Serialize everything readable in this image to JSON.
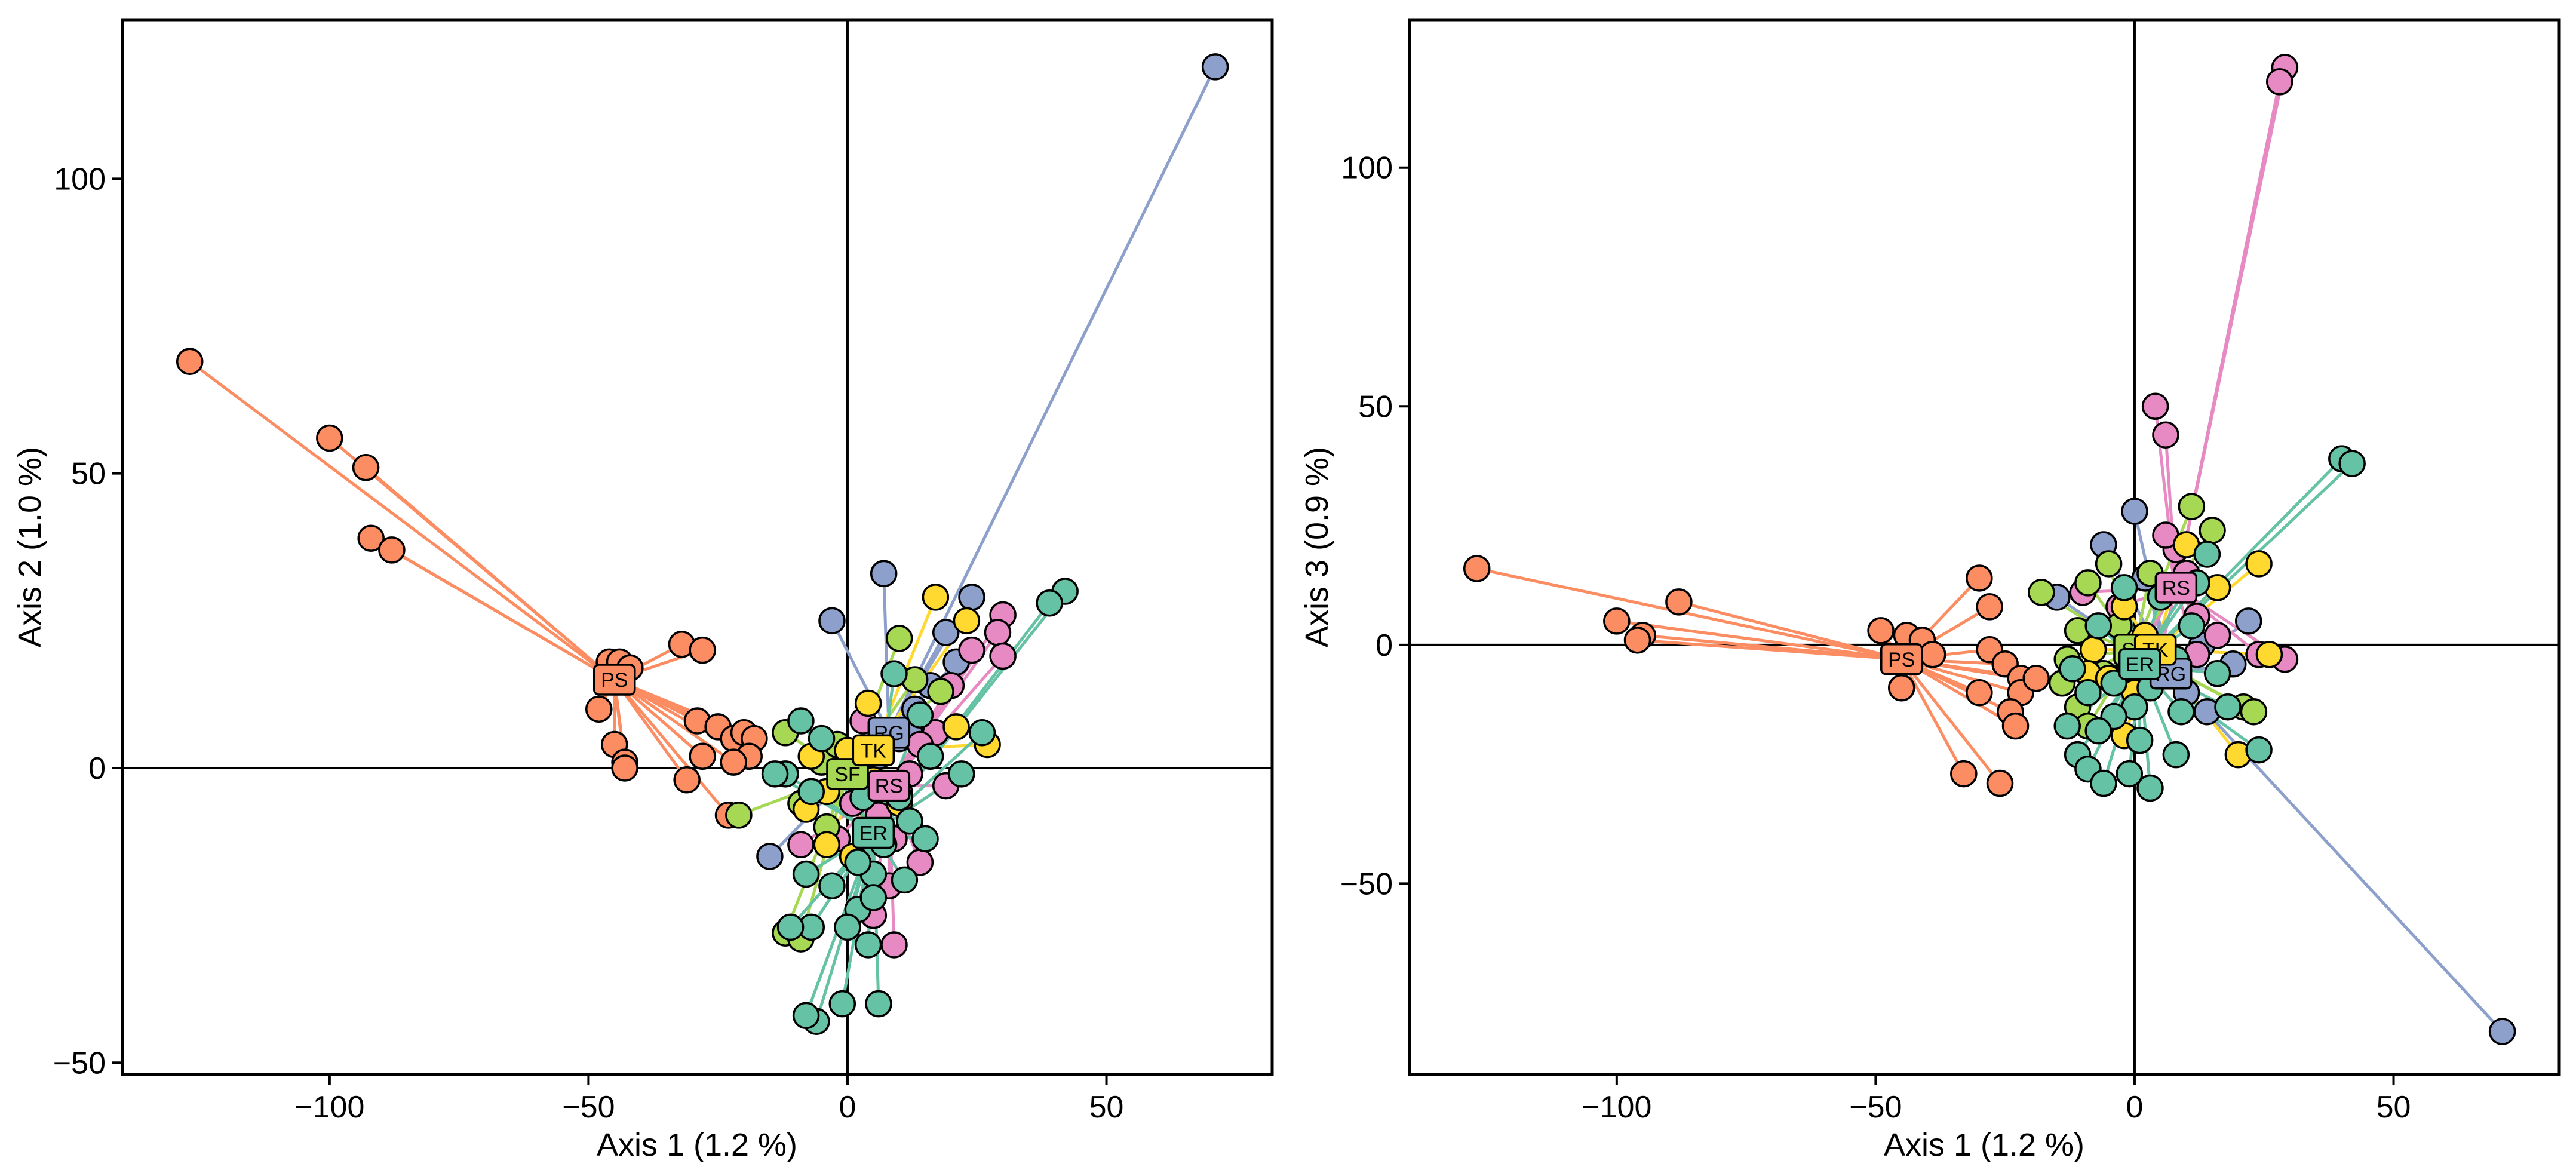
{
  "colors": {
    "ER": "#66C2A5",
    "PS": "#FC8D62",
    "RG": "#8DA0CB",
    "RS": "#E78AC3",
    "SF": "#A6D854",
    "TK": "#FFD92F"
  },
  "chart_data": [
    {
      "type": "scatter",
      "title": "",
      "xlabel": "Axis 1 (1.2 %)",
      "ylabel": "Axis 2 (1.0 %)",
      "xlim": [
        -140,
        82
      ],
      "ylim": [
        -52,
        127
      ],
      "xticks": [
        -100,
        -50,
        0,
        50
      ],
      "yticks": [
        -50,
        0,
        50,
        100
      ],
      "xtick_labels": [
        "−100",
        "−50",
        "0",
        "50"
      ],
      "ytick_labels": [
        "−50",
        "0",
        "50",
        "100"
      ],
      "reference_lines": {
        "x": 0,
        "y": 0
      },
      "legend": "none",
      "groups": [
        {
          "name": "PS",
          "centroid": [
            -45,
            15
          ],
          "label": "PS",
          "points": [
            [
              -127,
              69
            ],
            [
              -100,
              56
            ],
            [
              -93,
              51
            ],
            [
              -92,
              39
            ],
            [
              -88,
              37
            ],
            [
              -46,
              18
            ],
            [
              -44,
              18
            ],
            [
              -42,
              17
            ],
            [
              -48,
              10
            ],
            [
              -45,
              4
            ],
            [
              -43,
              1
            ],
            [
              -43,
              0
            ],
            [
              -32,
              21
            ],
            [
              -28,
              20
            ],
            [
              -29,
              8
            ],
            [
              -28,
              2
            ],
            [
              -31,
              -2
            ],
            [
              -25,
              7
            ],
            [
              -22,
              5
            ],
            [
              -20,
              6
            ],
            [
              -18,
              5
            ],
            [
              -19,
              2
            ],
            [
              -22,
              1
            ],
            [
              -23,
              -8
            ]
          ]
        },
        {
          "name": "RG",
          "centroid": [
            8,
            6
          ],
          "label": "RG",
          "points": [
            [
              71,
              119
            ],
            [
              7,
              33
            ],
            [
              -3,
              25
            ],
            [
              19,
              23
            ],
            [
              21,
              18
            ],
            [
              24,
              29
            ],
            [
              13,
              10
            ],
            [
              10,
              5
            ],
            [
              6,
              2
            ],
            [
              -15,
              -15
            ],
            [
              16,
              14
            ],
            [
              12,
              6
            ]
          ]
        },
        {
          "name": "RS",
          "centroid": [
            8,
            -3
          ],
          "label": "RS",
          "points": [
            [
              30,
              26
            ],
            [
              29,
              23
            ],
            [
              30,
              19
            ],
            [
              24,
              20
            ],
            [
              20,
              14
            ],
            [
              17,
              6
            ],
            [
              14,
              4
            ],
            [
              12,
              -1
            ],
            [
              10,
              -4
            ],
            [
              6,
              -8
            ],
            [
              9,
              -12
            ],
            [
              14,
              -16
            ],
            [
              8,
              -20
            ],
            [
              5,
              -25
            ],
            [
              9,
              -30
            ],
            [
              19,
              -3
            ],
            [
              0,
              2
            ],
            [
              3,
              8
            ],
            [
              1,
              -6
            ],
            [
              -2,
              -12
            ],
            [
              -9,
              -13
            ]
          ]
        },
        {
          "name": "SF",
          "centroid": [
            0,
            -1
          ],
          "label": "SF",
          "points": [
            [
              -21,
              -8
            ],
            [
              -12,
              6
            ],
            [
              -9,
              -6
            ],
            [
              -5,
              1
            ],
            [
              10,
              22
            ],
            [
              13,
              15
            ],
            [
              18,
              13
            ],
            [
              -12,
              -28
            ],
            [
              -9,
              -29
            ],
            [
              4,
              -2
            ],
            [
              -4,
              -10
            ],
            [
              -2,
              4
            ]
          ]
        },
        {
          "name": "TK",
          "centroid": [
            5,
            3
          ],
          "label": "TK",
          "points": [
            [
              17,
              29
            ],
            [
              23,
              25
            ],
            [
              27,
              4
            ],
            [
              21,
              7
            ],
            [
              4,
              11
            ],
            [
              0,
              3
            ],
            [
              -4,
              -4
            ],
            [
              -8,
              -7
            ],
            [
              -4,
              -13
            ],
            [
              1,
              -15
            ],
            [
              5,
              -2
            ],
            [
              10,
              -6
            ],
            [
              -7,
              2
            ]
          ]
        },
        {
          "name": "ER",
          "centroid": [
            5,
            -11
          ],
          "label": "ER",
          "points": [
            [
              42,
              30
            ],
            [
              39,
              28
            ],
            [
              26,
              6
            ],
            [
              22,
              -1
            ],
            [
              14,
              9
            ],
            [
              16,
              2
            ],
            [
              10,
              -5
            ],
            [
              5,
              -18
            ],
            [
              2,
              -24
            ],
            [
              0,
              -27
            ],
            [
              4,
              -30
            ],
            [
              -1,
              -40
            ],
            [
              6,
              -40
            ],
            [
              -6,
              -43
            ],
            [
              -8,
              -42
            ],
            [
              -7,
              -27
            ],
            [
              -11,
              -27
            ],
            [
              -8,
              -18
            ],
            [
              -3,
              -20
            ],
            [
              2,
              -16
            ],
            [
              7,
              -13
            ],
            [
              12,
              -9
            ],
            [
              15,
              -12
            ],
            [
              -12,
              -1
            ],
            [
              -5,
              5
            ],
            [
              -9,
              8
            ],
            [
              -14,
              -1
            ],
            [
              9,
              16
            ],
            [
              5,
              -22
            ],
            [
              11,
              -19
            ],
            [
              -7,
              -4
            ],
            [
              3,
              -5
            ]
          ]
        }
      ]
    },
    {
      "type": "scatter",
      "title": "",
      "xlabel": "Axis 1 (1.2 %)",
      "ylabel": "Axis 3 (0.9 %)",
      "xlim": [
        -140,
        82
      ],
      "ylim": [
        -90,
        131
      ],
      "xticks": [
        -100,
        -50,
        0,
        50
      ],
      "yticks": [
        -50,
        0,
        50,
        100
      ],
      "xtick_labels": [
        "−100",
        "−50",
        "0",
        "50"
      ],
      "ytick_labels": [
        "−50",
        "0",
        "50",
        "100"
      ],
      "reference_lines": {
        "x": 0,
        "y": 0
      },
      "legend": "none",
      "groups": [
        {
          "name": "PS",
          "centroid": [
            -45,
            -3
          ],
          "label": "PS",
          "points": [
            [
              -127,
              16
            ],
            [
              -100,
              5
            ],
            [
              -95,
              2
            ],
            [
              -96,
              1
            ],
            [
              -88,
              9
            ],
            [
              -49,
              3
            ],
            [
              -44,
              2
            ],
            [
              -41,
              1
            ],
            [
              -45,
              -9
            ],
            [
              -30,
              14
            ],
            [
              -28,
              8
            ],
            [
              -28,
              -1
            ],
            [
              -30,
              -10
            ],
            [
              -25,
              -4
            ],
            [
              -22,
              -7
            ],
            [
              -22,
              -10
            ],
            [
              -24,
              -14
            ],
            [
              -23,
              -17
            ],
            [
              -33,
              -27
            ],
            [
              -26,
              -29
            ],
            [
              -19,
              -7
            ],
            [
              -39,
              -2
            ]
          ]
        },
        {
          "name": "RG",
          "centroid": [
            7,
            -6
          ],
          "label": "RG",
          "points": [
            [
              71,
              -81
            ],
            [
              0,
              28
            ],
            [
              -6,
              21
            ],
            [
              -15,
              10
            ],
            [
              2,
              14
            ],
            [
              22,
              5
            ],
            [
              19,
              -4
            ],
            [
              14,
              -14
            ],
            [
              10,
              -10
            ],
            [
              5,
              -2
            ],
            [
              -3,
              -7
            ],
            [
              13,
              0
            ]
          ]
        },
        {
          "name": "RS",
          "centroid": [
            8,
            12
          ],
          "label": "RS",
          "points": [
            [
              29,
              121
            ],
            [
              28,
              118
            ],
            [
              4,
              50
            ],
            [
              6,
              44
            ],
            [
              8,
              20
            ],
            [
              6,
              23
            ],
            [
              10,
              15
            ],
            [
              -10,
              11
            ],
            [
              -3,
              8
            ],
            [
              -1,
              -5
            ],
            [
              4,
              -6
            ],
            [
              12,
              -2
            ],
            [
              16,
              2
            ],
            [
              24,
              -2
            ],
            [
              29,
              -3
            ],
            [
              12,
              6
            ]
          ]
        },
        {
          "name": "SF",
          "centroid": [
            0,
            -1
          ],
          "label": "SF",
          "points": [
            [
              11,
              29
            ],
            [
              15,
              24
            ],
            [
              3,
              15
            ],
            [
              -5,
              17
            ],
            [
              -9,
              13
            ],
            [
              -18,
              11
            ],
            [
              -11,
              3
            ],
            [
              -13,
              -3
            ],
            [
              -14,
              -8
            ],
            [
              -11,
              -13
            ],
            [
              -9,
              -17
            ],
            [
              21,
              -13
            ],
            [
              23,
              -14
            ],
            [
              -3,
              4
            ],
            [
              -6,
              -6
            ]
          ]
        },
        {
          "name": "TK",
          "centroid": [
            4,
            -1
          ],
          "label": "TK",
          "points": [
            [
              24,
              17
            ],
            [
              10,
              21
            ],
            [
              16,
              12
            ],
            [
              26,
              -2
            ],
            [
              -2,
              8
            ],
            [
              -8,
              -1
            ],
            [
              -9,
              -6
            ],
            [
              -5,
              -7
            ],
            [
              0,
              -10
            ],
            [
              -2,
              -19
            ],
            [
              20,
              -23
            ],
            [
              2,
              2
            ],
            [
              6,
              -4
            ]
          ]
        },
        {
          "name": "ER",
          "centroid": [
            1,
            -4
          ],
          "label": "ER",
          "points": [
            [
              40,
              39
            ],
            [
              42,
              38
            ],
            [
              14,
              19
            ],
            [
              12,
              13
            ],
            [
              11,
              4
            ],
            [
              8,
              -3
            ],
            [
              3,
              -9
            ],
            [
              0,
              -13
            ],
            [
              -4,
              -15
            ],
            [
              -7,
              -18
            ],
            [
              -11,
              -23
            ],
            [
              -9,
              -26
            ],
            [
              -6,
              -29
            ],
            [
              -1,
              -27
            ],
            [
              3,
              -30
            ],
            [
              8,
              -23
            ],
            [
              -13,
              -17
            ],
            [
              24,
              -22
            ],
            [
              18,
              -13
            ],
            [
              9,
              -14
            ],
            [
              -4,
              -8
            ],
            [
              -9,
              -10
            ],
            [
              1,
              -20
            ],
            [
              5,
              10
            ],
            [
              -2,
              12
            ],
            [
              16,
              -6
            ],
            [
              -7,
              4
            ],
            [
              -12,
              -5
            ]
          ]
        }
      ]
    }
  ]
}
